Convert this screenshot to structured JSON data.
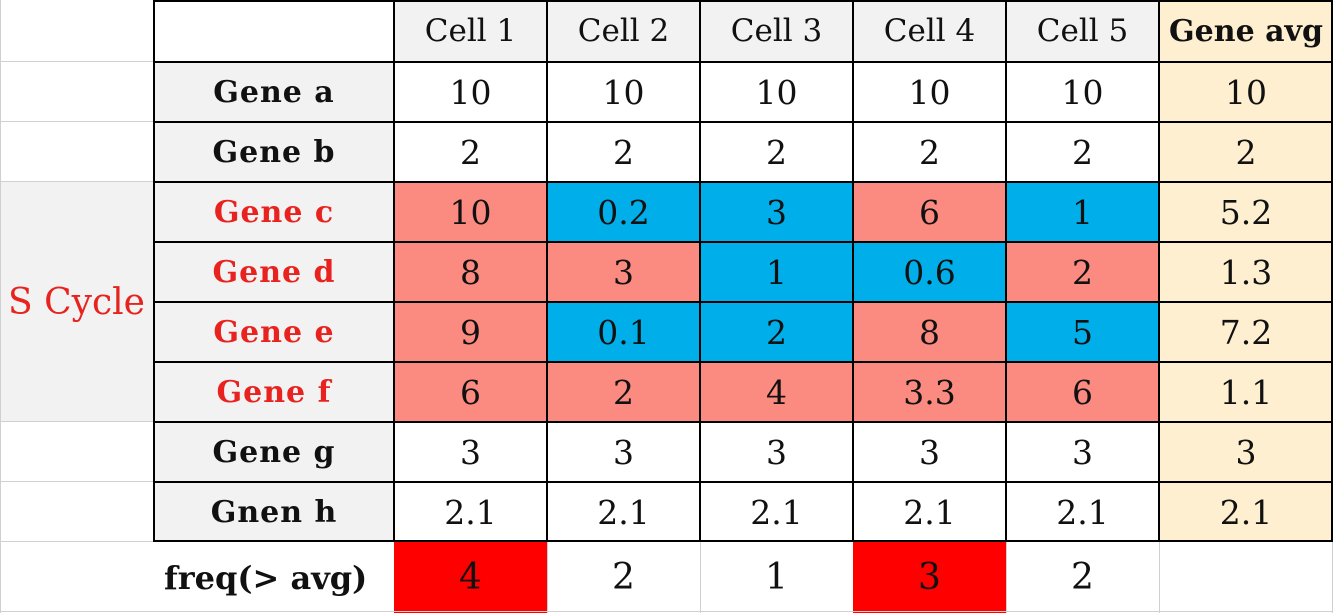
{
  "header": {
    "corner": "",
    "cells": [
      "Cell 1",
      "Cell 2",
      "Cell 3",
      "Cell 4",
      "Cell 5"
    ],
    "avg": "Gene avg"
  },
  "group_label": "S Cycle",
  "rows": [
    {
      "gene": "Gene a",
      "values": [
        "10",
        "10",
        "10",
        "10",
        "10"
      ],
      "avg": "10"
    },
    {
      "gene": "Gene b",
      "values": [
        "2",
        "2",
        "2",
        "2",
        "2"
      ],
      "avg": "2"
    },
    {
      "gene": "Gene c",
      "values": [
        "10",
        "0.2",
        "3",
        "6",
        "1"
      ],
      "avg": "5.2"
    },
    {
      "gene": "Gene d",
      "values": [
        "8",
        "3",
        "1",
        "0.6",
        "2"
      ],
      "avg": "1.3"
    },
    {
      "gene": "Gene e",
      "values": [
        "9",
        "0.1",
        "2",
        "8",
        "5"
      ],
      "avg": "7.2"
    },
    {
      "gene": "Gene f",
      "values": [
        "6",
        "2",
        "4",
        "3.3",
        "6"
      ],
      "avg": "1.1"
    },
    {
      "gene": "Gene g",
      "values": [
        "3",
        "3",
        "3",
        "3",
        "3"
      ],
      "avg": "3"
    },
    {
      "gene": "Gnen h",
      "values": [
        "2.1",
        "2.1",
        "2.1",
        "2.1",
        "2.1"
      ],
      "avg": "2.1"
    }
  ],
  "freq": {
    "label": "freq(> avg)",
    "values": [
      "4",
      "2",
      "1",
      "3",
      "2"
    ]
  },
  "colors": {
    "above_avg": "#fb8a80",
    "below_avg": "#00aeea",
    "freq_highlight": "#ff0000",
    "avg_column": "#fdefd0",
    "highlight_text": "#e8231f"
  }
}
